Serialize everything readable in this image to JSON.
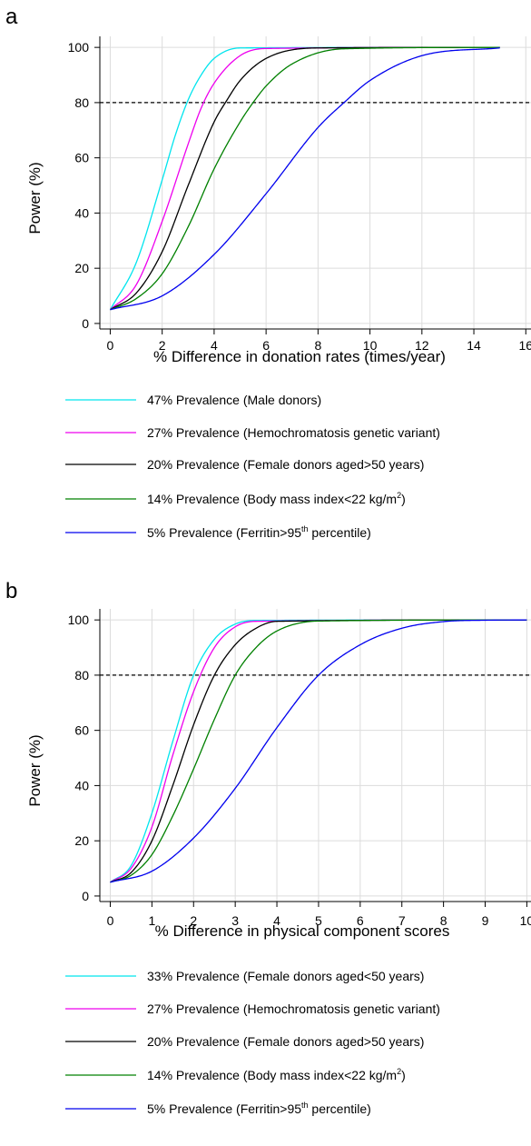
{
  "figure": {
    "panels": [
      {
        "letter": "a",
        "legend": [
          {
            "prefix": "47% Prevalence (Male donors)",
            "sup": "",
            "suffix": ""
          },
          {
            "prefix": "27% Prevalence (Hemochromatosis genetic variant)",
            "sup": "",
            "suffix": ""
          },
          {
            "prefix": "20% Prevalence (Female donors aged>50 years)",
            "sup": "",
            "suffix": ""
          },
          {
            "prefix": "14% Prevalence (Body mass index<22 kg/m",
            "sup": "2",
            "suffix": ")"
          },
          {
            "prefix": "5% Prevalence (Ferritin>95",
            "sup": "th",
            "suffix": " percentile)"
          }
        ]
      },
      {
        "letter": "b",
        "legend": [
          {
            "prefix": "33% Prevalence (Female donors aged<50 years)",
            "sup": "",
            "suffix": ""
          },
          {
            "prefix": "27% Prevalence (Hemochromatosis genetic variant)",
            "sup": "",
            "suffix": ""
          },
          {
            "prefix": "20% Prevalence (Female donors aged>50 years)",
            "sup": "",
            "suffix": ""
          },
          {
            "prefix": "14% Prevalence (Body mass index<22 kg/m",
            "sup": "2",
            "suffix": ")"
          },
          {
            "prefix": "5% Prevalence (Ferritin>95",
            "sup": "th",
            "suffix": " percentile)"
          }
        ]
      }
    ]
  },
  "chart_data": [
    {
      "type": "line",
      "xlabel": "% Difference in donation rates (times/year)",
      "ylabel": "Power (%)",
      "xlim": [
        -0.4,
        16.2
      ],
      "ylim": [
        -2,
        104
      ],
      "xticks": [
        0,
        2,
        4,
        6,
        8,
        10,
        12,
        14,
        16
      ],
      "yticks": [
        0,
        20,
        40,
        60,
        80,
        100
      ],
      "grid": true,
      "reference_line": {
        "y": 80,
        "style": "dashed"
      },
      "legend_position": "below",
      "series": [
        {
          "name": "47% Prevalence (Male donors)",
          "color": "#00e5ee",
          "x_max": 15,
          "x": [
            0,
            1,
            2,
            2.5,
            3,
            3.5,
            4,
            5,
            15
          ],
          "y": [
            5,
            22,
            52,
            68,
            81,
            90,
            96,
            99.8,
            100
          ]
        },
        {
          "name": "27% Prevalence (Hemochromatosis genetic variant)",
          "color": "#ee00ee",
          "x_max": 15,
          "x": [
            0,
            1,
            2,
            3,
            3.5,
            4,
            5,
            6,
            15
          ],
          "y": [
            5,
            14,
            37,
            65,
            78,
            87,
            97,
            99.6,
            100
          ]
        },
        {
          "name": "20% Prevalence (Female donors aged>50 years)",
          "color": "#000000",
          "x_max": 15,
          "x": [
            0,
            1,
            2,
            3,
            4,
            4.5,
            5,
            6,
            8,
            15
          ],
          "y": [
            5,
            11,
            26,
            50,
            73,
            81,
            88,
            96,
            99.8,
            100
          ]
        },
        {
          "name": "14% Prevalence (Body mass index<22 kg/m2)",
          "color": "#008000",
          "x_max": 15,
          "x": [
            0,
            1,
            2,
            3,
            4,
            5,
            5.5,
            6,
            7,
            9,
            15
          ],
          "y": [
            5,
            9,
            18,
            35,
            56,
            73,
            80,
            86,
            94,
            99.5,
            100
          ]
        },
        {
          "name": "5% Prevalence (Ferritin>95th percentile)",
          "color": "#0000ee",
          "x_max": 15,
          "x": [
            0,
            2,
            4,
            6,
            8,
            9,
            10,
            12,
            15
          ],
          "y": [
            5,
            10,
            25,
            47,
            71,
            80,
            88,
            97,
            99.8
          ]
        }
      ]
    },
    {
      "type": "line",
      "xlabel": "% Difference in physical component scores",
      "ylabel": "Power (%)",
      "xlim": [
        -0.25,
        10.1
      ],
      "ylim": [
        -2,
        104
      ],
      "xticks": [
        0,
        1,
        2,
        3,
        4,
        5,
        6,
        7,
        8,
        9,
        10
      ],
      "yticks": [
        0,
        20,
        40,
        60,
        80,
        100
      ],
      "grid": true,
      "reference_line": {
        "y": 80,
        "style": "dashed"
      },
      "legend_position": "below",
      "series": [
        {
          "name": "33% Prevalence (Female donors aged<50 years)",
          "color": "#00e5ee",
          "x_max": 10,
          "x": [
            0,
            0.5,
            1,
            1.5,
            2,
            2.5,
            3,
            3.5,
            10
          ],
          "y": [
            5,
            11,
            30,
            56,
            80,
            93,
            98.5,
            99.8,
            100
          ]
        },
        {
          "name": "27% Prevalence (Hemochromatosis genetic variant)",
          "color": "#ee00ee",
          "x_max": 10,
          "x": [
            0,
            0.5,
            1,
            1.5,
            2,
            2.5,
            3,
            3.5,
            10
          ],
          "y": [
            5,
            10,
            25,
            51,
            74,
            90,
            97.5,
            99.5,
            100
          ]
        },
        {
          "name": "20% Prevalence (Female donors aged>50 years)",
          "color": "#000000",
          "x_max": 10,
          "x": [
            0,
            0.5,
            1,
            1.5,
            2,
            2.5,
            3,
            3.5,
            4,
            10
          ],
          "y": [
            5,
            8.5,
            20,
            40,
            62,
            80,
            91,
            97,
            99.5,
            100
          ]
        },
        {
          "name": "14% Prevalence (Body mass index<22 kg/m2)",
          "color": "#008000",
          "x_max": 10,
          "x": [
            0,
            0.5,
            1,
            1.5,
            2,
            2.5,
            3,
            3.5,
            4,
            5,
            10
          ],
          "y": [
            5,
            7.5,
            15,
            29,
            46,
            64,
            80,
            90,
            96,
            99.6,
            100
          ]
        },
        {
          "name": "5% Prevalence (Ferritin>95th percentile)",
          "color": "#0000ee",
          "x_max": 10,
          "x": [
            0,
            1,
            2,
            3,
            4,
            5,
            6,
            7,
            8,
            9,
            10
          ],
          "y": [
            5,
            9,
            21,
            39,
            61,
            80,
            91,
            97,
            99.4,
            99.9,
            100
          ]
        }
      ]
    }
  ]
}
